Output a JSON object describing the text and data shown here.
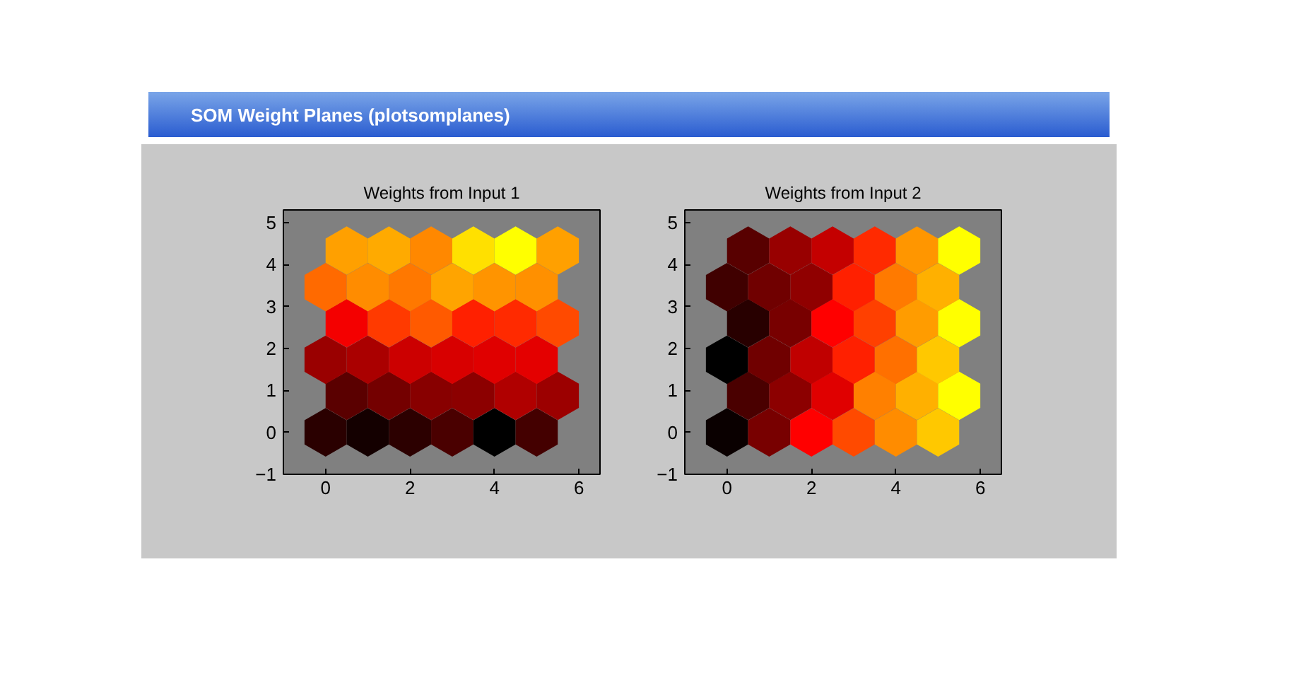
{
  "chart_data": [
    {
      "type": "scatter",
      "title": "Weights from Input 1",
      "annotations": [
        "SOM Weight Planes (plotsomplanes)"
      ],
      "xlim": [
        -1,
        6.5
      ],
      "ylim": [
        -1,
        5.3
      ],
      "xticks": [
        0,
        2,
        4,
        6
      ],
      "yticks": [
        -1,
        0,
        1,
        2,
        3,
        4,
        5
      ],
      "series": [
        {
          "x": [
            0,
            1,
            2,
            3,
            4,
            5,
            0.5,
            1.5,
            2.5,
            3.5,
            4.5,
            5.5,
            0,
            1,
            2,
            3,
            4,
            5,
            0.5,
            1.5,
            2.5,
            3.5,
            4.5,
            5.5,
            0,
            1,
            2,
            3,
            4,
            5,
            0.5,
            1.5,
            2.5,
            3.5,
            4.5,
            5.5
          ],
          "values": [
            0,
            0,
            0,
            0,
            0,
            0,
            0.87,
            0.87,
            0.87,
            0.87,
            0.87,
            0.87,
            1.73,
            1.73,
            1.73,
            1.73,
            1.73,
            1.73,
            2.6,
            2.6,
            2.6,
            2.6,
            2.6,
            2.6,
            3.46,
            3.46,
            3.46,
            3.46,
            3.46,
            3.46,
            4.33,
            4.33,
            4.33,
            4.33,
            4.33,
            4.33
          ],
          "colors": [
            "#2a0000",
            "#140000",
            "#2c0000",
            "#4a0000",
            "#000000",
            "#440000",
            "#5a0000",
            "#740000",
            "#880000",
            "#8c0000",
            "#b00000",
            "#9c0000",
            "#9a0000",
            "#aa0000",
            "#cc0000",
            "#d80000",
            "#e00000",
            "#e40000",
            "#f40000",
            "#ff3a00",
            "#ff5a00",
            "#ff2000",
            "#ff2a00",
            "#ff4a00",
            "#ff6a00",
            "#ff8c00",
            "#ff7800",
            "#ffa400",
            "#ff9400",
            "#ff9000",
            "#ffa000",
            "#ffaa00",
            "#ff8800",
            "#ffe000",
            "#ffff00",
            "#ffa000"
          ]
        }
      ]
    },
    {
      "type": "scatter",
      "title": "Weights from Input 2",
      "xlim": [
        -1,
        6.5
      ],
      "ylim": [
        -1,
        5.3
      ],
      "xticks": [
        0,
        2,
        4,
        6
      ],
      "yticks": [
        -1,
        0,
        1,
        2,
        3,
        4,
        5
      ],
      "series": [
        {
          "x": [
            0,
            1,
            2,
            3,
            4,
            5,
            0.5,
            1.5,
            2.5,
            3.5,
            4.5,
            5.5,
            0,
            1,
            2,
            3,
            4,
            5,
            0.5,
            1.5,
            2.5,
            3.5,
            4.5,
            5.5,
            0,
            1,
            2,
            3,
            4,
            5,
            0.5,
            1.5,
            2.5,
            3.5,
            4.5,
            5.5
          ],
          "values": [
            0,
            0,
            0,
            0,
            0,
            0,
            0.87,
            0.87,
            0.87,
            0.87,
            0.87,
            0.87,
            1.73,
            1.73,
            1.73,
            1.73,
            1.73,
            1.73,
            2.6,
            2.6,
            2.6,
            2.6,
            2.6,
            2.6,
            3.46,
            3.46,
            3.46,
            3.46,
            3.46,
            3.46,
            4.33,
            4.33,
            4.33,
            4.33,
            4.33,
            4.33
          ],
          "colors": [
            "#0a0000",
            "#780000",
            "#ff0000",
            "#ff4a00",
            "#ff8c00",
            "#ffc800",
            "#4a0000",
            "#8c0000",
            "#e00000",
            "#ff8000",
            "#ffb000",
            "#ffff00",
            "#000000",
            "#700000",
            "#c00000",
            "#ff2000",
            "#ff7000",
            "#ffc800",
            "#280000",
            "#780000",
            "#ff0000",
            "#ff4000",
            "#ff9c00",
            "#ffff00",
            "#400000",
            "#700000",
            "#900000",
            "#ff2000",
            "#ff7a00",
            "#ffb000",
            "#580000",
            "#980000",
            "#c40000",
            "#ff2a00",
            "#ff9600",
            "#ffff00"
          ]
        }
      ]
    }
  ]
}
